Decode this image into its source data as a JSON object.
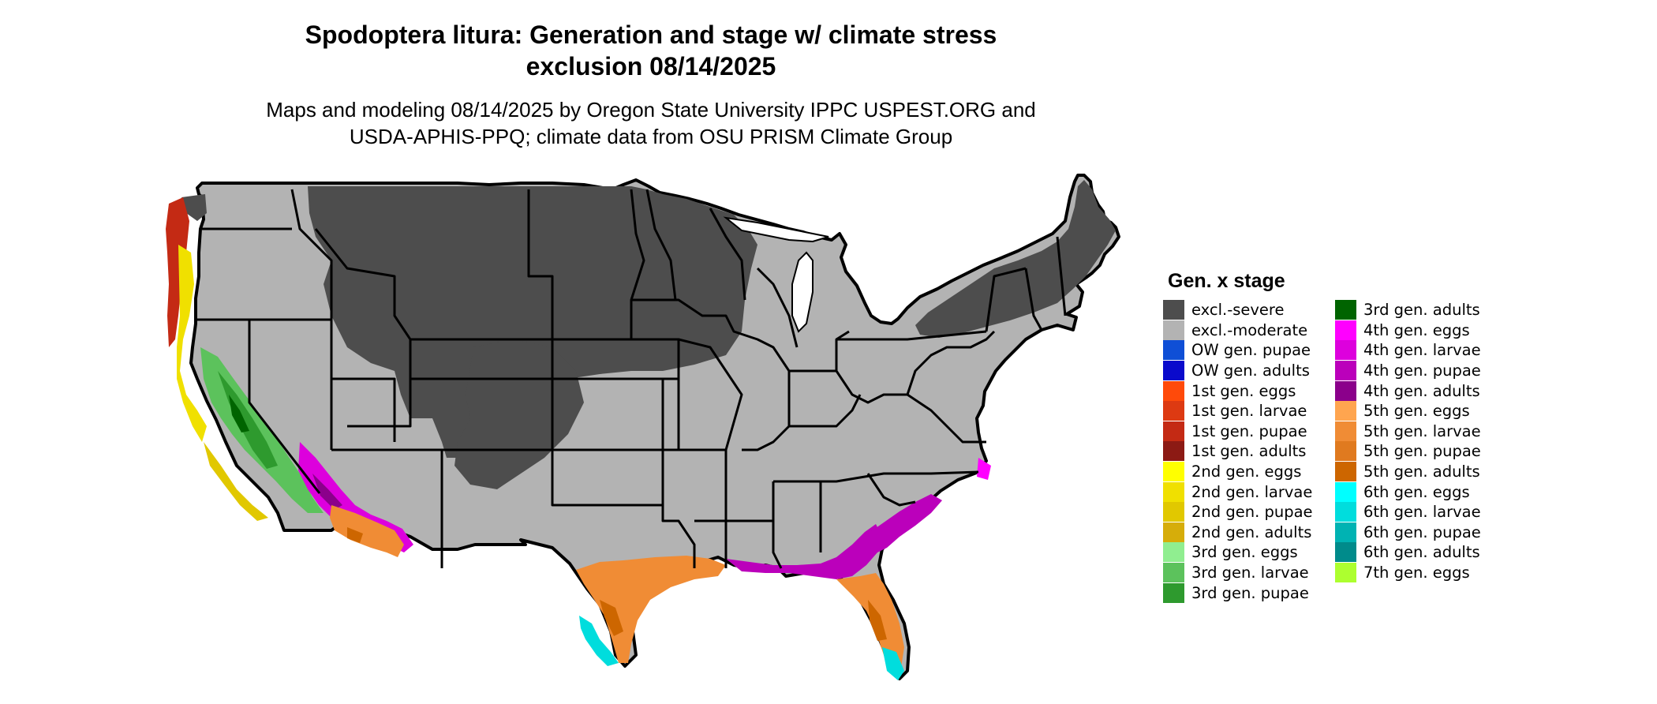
{
  "title_lines": [
    "Spodoptera litura: Generation and stage w/ climate stress",
    "exclusion 08/14/2025"
  ],
  "subtitle_lines": [
    "Maps and modeling 08/14/2025 by Oregon State University IPPC USPEST.ORG and",
    "USDA-APHIS-PPQ; climate data from OSU PRISM Climate Group"
  ],
  "legend": {
    "title": "Gen. x stage",
    "col1": [
      {
        "label": "excl.-severe",
        "color": "#4d4d4d"
      },
      {
        "label": "excl.-moderate",
        "color": "#b3b3b3"
      },
      {
        "label": "OW gen. pupae",
        "color": "#0f4fd6"
      },
      {
        "label": "OW gen. adults",
        "color": "#0a0acc"
      },
      {
        "label": "1st gen. eggs",
        "color": "#ff4a0a"
      },
      {
        "label": "1st gen. larvae",
        "color": "#dd3a12"
      },
      {
        "label": "1st gen. pupae",
        "color": "#c42a14"
      },
      {
        "label": "1st gen. adults",
        "color": "#8c1a14"
      },
      {
        "label": "2nd gen. eggs",
        "color": "#ffff00"
      },
      {
        "label": "2nd gen. larvae",
        "color": "#f0e000"
      },
      {
        "label": "2nd gen. pupae",
        "color": "#e1c800"
      },
      {
        "label": "2nd gen. adults",
        "color": "#d6ad0a"
      },
      {
        "label": "3rd gen. eggs",
        "color": "#90ee90"
      },
      {
        "label": "3rd gen. larvae",
        "color": "#5cc25c"
      },
      {
        "label": "3rd gen. pupae",
        "color": "#2e9a2e"
      }
    ],
    "col2": [
      {
        "label": "3rd gen. adults",
        "color": "#006400"
      },
      {
        "label": "4th gen. eggs",
        "color": "#ff00ff"
      },
      {
        "label": "4th gen. larvae",
        "color": "#dd00dd"
      },
      {
        "label": "4th gen. pupae",
        "color": "#bb00bb"
      },
      {
        "label": "4th gen. adults",
        "color": "#8b008b"
      },
      {
        "label": "5th gen. eggs",
        "color": "#ffa54f"
      },
      {
        "label": "5th gen. larvae",
        "color": "#f08c35"
      },
      {
        "label": "5th gen. pupae",
        "color": "#e07a1f"
      },
      {
        "label": "5th gen. adults",
        "color": "#cd6600"
      },
      {
        "label": "6th gen. eggs",
        "color": "#00ffff"
      },
      {
        "label": "6th gen. larvae",
        "color": "#00dddd"
      },
      {
        "label": "6th gen. pupae",
        "color": "#00b3b3"
      },
      {
        "label": "6th gen. adults",
        "color": "#008b8b"
      },
      {
        "label": "7th gen. eggs",
        "color": "#adff2f"
      }
    ]
  }
}
